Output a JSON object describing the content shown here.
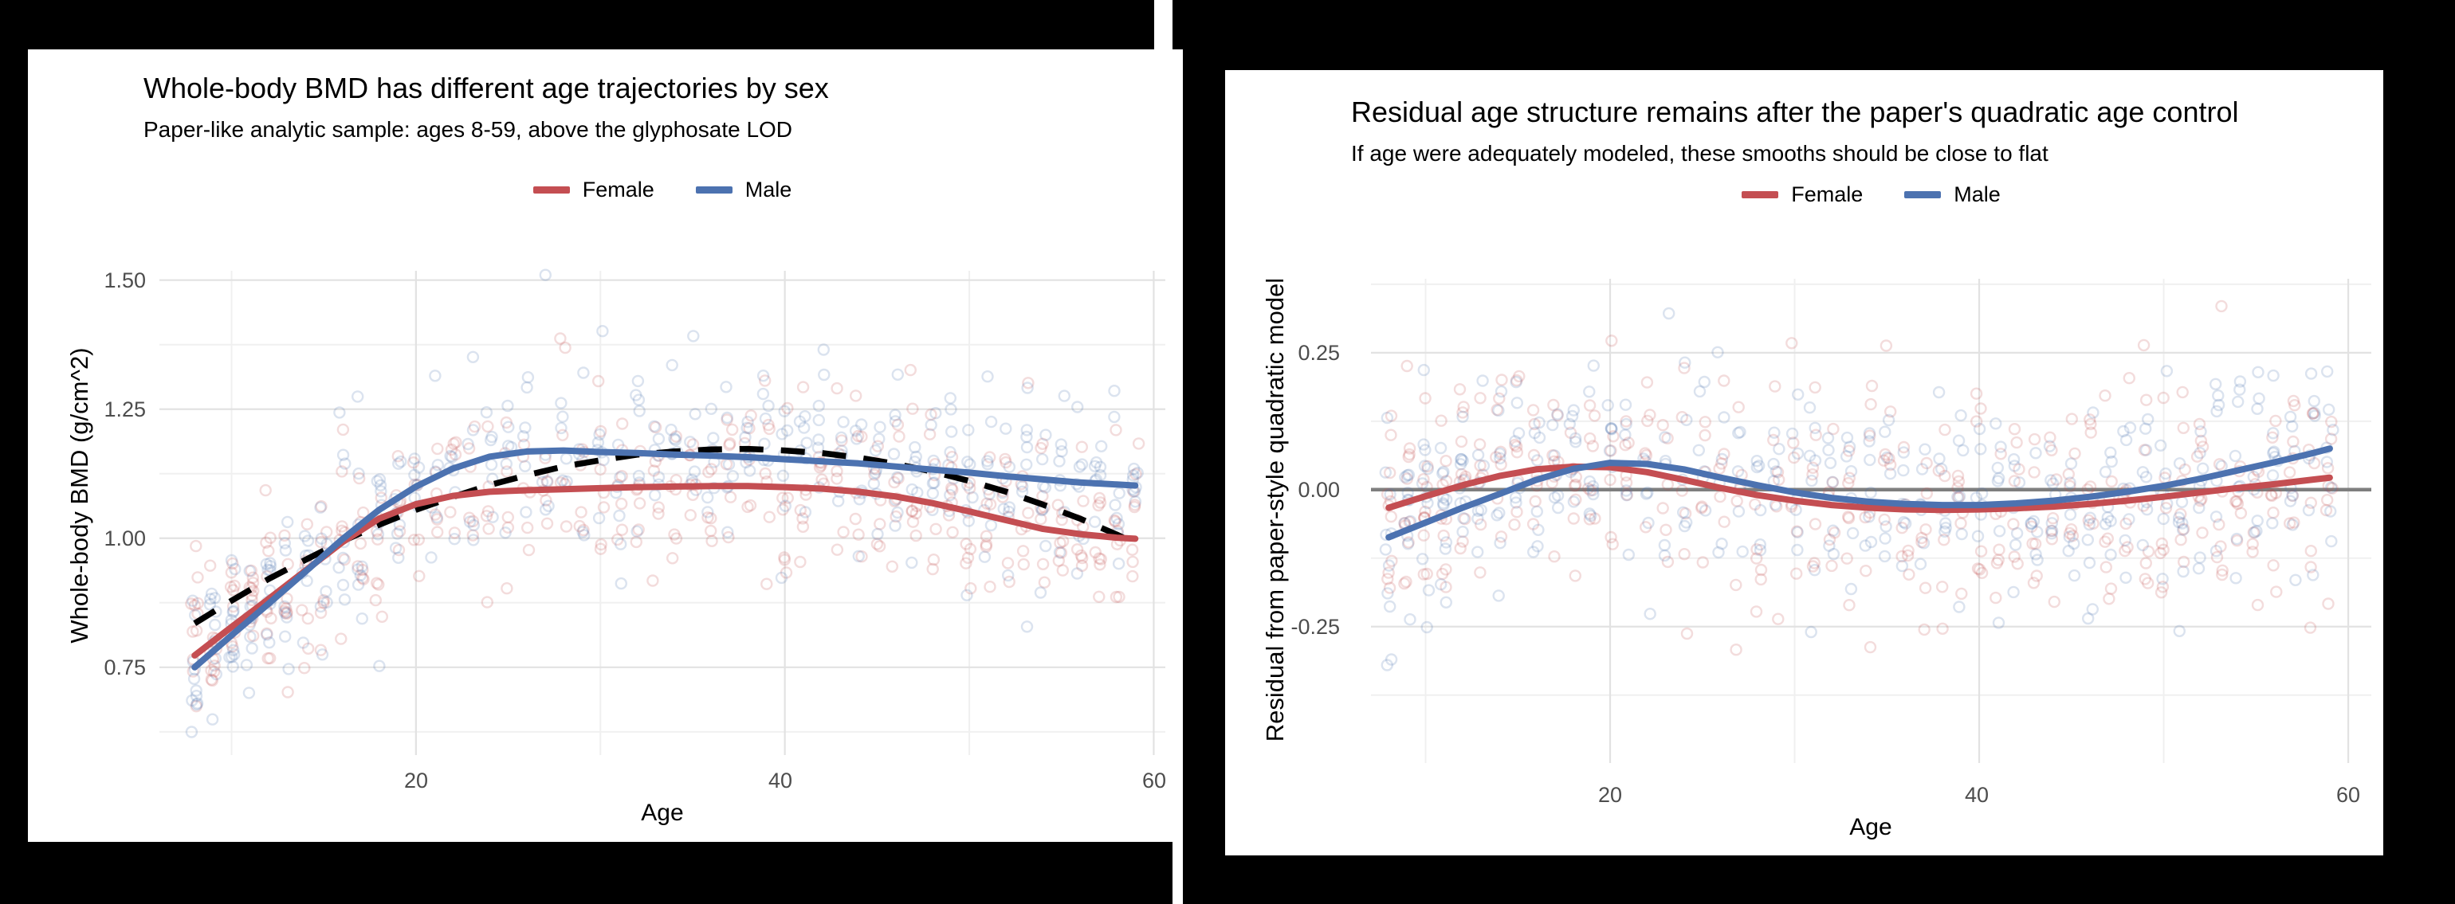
{
  "colors": {
    "female": "#C44E52",
    "male": "#4C72B0",
    "dashed_fit": "#000000",
    "grid_major": "#E2E2E2",
    "grid_minor": "#F0F0F0",
    "zero_line": "#7F7F7F",
    "tick_text": "#4D4D4D",
    "text": "#000000",
    "panel_bg": "#FFFFFF",
    "page_bg": "#000000"
  },
  "panels": {
    "left": {
      "title": "Whole-body BMD has different age trajectories by sex",
      "subtitle": "Paper-like analytic sample: ages 8-59, above the glyphosate LOD",
      "legend": {
        "items": [
          {
            "label": "Female"
          },
          {
            "label": "Male"
          }
        ]
      },
      "x_axis": {
        "title": "Age",
        "tick_labels": [
          "20",
          "40",
          "60"
        ]
      },
      "y_axis": {
        "title": "Whole-body BMD (g/cm^2)",
        "tick_labels": [
          "1.50",
          "1.25",
          "1.00",
          "0.75"
        ]
      }
    },
    "right": {
      "title": "Residual age structure remains after the paper's quadratic age control",
      "subtitle": "If age were adequately modeled, these smooths should be close to flat",
      "legend": {
        "items": [
          {
            "label": "Female"
          },
          {
            "label": "Male"
          }
        ]
      },
      "x_axis": {
        "title": "Age",
        "tick_labels": [
          "20",
          "40",
          "60"
        ]
      },
      "y_axis": {
        "title": "Residual from paper-style quadratic model",
        "tick_labels": [
          "0.25",
          "0.00",
          "-0.25"
        ]
      }
    }
  },
  "chart_data": [
    {
      "id": "bmd-vs-age",
      "type": "scatter",
      "subtype": "jittered scatter with loess smooths and dashed quadratic reference",
      "title": "Whole-body BMD has different age trajectories by sex",
      "subtitle": "Paper-like analytic sample: ages 8-59, above the glyphosate LOD",
      "xlabel": "Age",
      "ylabel": "Whole-body BMD (g/cm^2)",
      "xlim": [
        6.09,
        60.63
      ],
      "ylim": [
        0.58,
        1.518
      ],
      "x_ticks_major": [
        20,
        40,
        60
      ],
      "x_ticks_minor": [
        10,
        30,
        50
      ],
      "y_ticks_major": [
        1.5,
        1.25,
        1.0,
        0.75
      ],
      "y_ticks_minor": [
        1.375,
        1.125,
        0.875,
        0.625
      ],
      "grid": true,
      "legend_position": "top-center",
      "ages": [
        8,
        10,
        12,
        14,
        16,
        18,
        20,
        22,
        24,
        26,
        28,
        30,
        32,
        34,
        36,
        38,
        40,
        42,
        44,
        46,
        48,
        50,
        52,
        54,
        56,
        58,
        59
      ],
      "series": [
        {
          "name": "Female",
          "color_key": "female",
          "values": [
            0.773,
            0.828,
            0.882,
            0.937,
            0.992,
            1.038,
            1.066,
            1.082,
            1.09,
            1.093,
            1.095,
            1.097,
            1.099,
            1.1,
            1.101,
            1.101,
            1.099,
            1.096,
            1.09,
            1.081,
            1.068,
            1.052,
            1.035,
            1.018,
            1.008,
            1.001,
            0.999
          ]
        },
        {
          "name": "Male",
          "color_key": "male",
          "values": [
            0.75,
            0.812,
            0.873,
            0.935,
            0.998,
            1.055,
            1.1,
            1.135,
            1.158,
            1.168,
            1.17,
            1.167,
            1.165,
            1.162,
            1.16,
            1.157,
            1.153,
            1.149,
            1.145,
            1.139,
            1.133,
            1.127,
            1.12,
            1.114,
            1.108,
            1.104,
            1.102
          ]
        }
      ],
      "reference_curve": {
        "name": "paper-style quadratic age fit",
        "style": "dashed-black",
        "values": [
          0.835,
          0.879,
          0.921,
          0.958,
          0.994,
          1.026,
          1.055,
          1.08,
          1.103,
          1.122,
          1.139,
          1.151,
          1.162,
          1.168,
          1.172,
          1.173,
          1.17,
          1.165,
          1.156,
          1.144,
          1.129,
          1.111,
          1.09,
          1.065,
          1.038,
          1.007,
          0.99
        ]
      },
      "scatter_approximation": {
        "note": "hundreds of translucent open circles in integer-age vertical columns around each sex curve; exact points not individually legible",
        "seed": 42,
        "sd_age_le_12": 0.075,
        "sd_other": 0.095,
        "point_value_range": [
          0.585,
          1.51
        ]
      }
    },
    {
      "id": "residual-vs-age",
      "type": "scatter",
      "subtype": "jittered scatter of model residuals with loess smooths and zero line",
      "title": "Residual age structure remains after the paper's quadratic age control",
      "subtitle": "If age were adequately modeled, these smooths should be close to flat",
      "xlabel": "Age",
      "ylabel": "Residual from paper-style quadratic model",
      "xlim": [
        7.04,
        61.25
      ],
      "ylim": [
        -0.499,
        0.385
      ],
      "x_ticks_major": [
        20,
        40,
        60
      ],
      "x_ticks_minor": [
        10,
        30,
        50
      ],
      "y_ticks_major": [
        0.25,
        0.0,
        -0.25
      ],
      "y_ticks_minor": [
        0.375,
        0.125,
        -0.125,
        -0.375
      ],
      "zero_line": 0,
      "grid": true,
      "legend_position": "top-center",
      "ages": [
        8,
        10,
        12,
        14,
        16,
        18,
        20,
        22,
        24,
        26,
        28,
        30,
        32,
        34,
        36,
        38,
        40,
        42,
        44,
        46,
        48,
        50,
        52,
        54,
        56,
        58,
        59
      ],
      "series": [
        {
          "name": "Female",
          "color_key": "female",
          "values": [
            -0.033,
            -0.012,
            0.008,
            0.025,
            0.037,
            0.042,
            0.041,
            0.032,
            0.018,
            0.003,
            -0.01,
            -0.02,
            -0.028,
            -0.033,
            -0.036,
            -0.037,
            -0.036,
            -0.034,
            -0.031,
            -0.026,
            -0.02,
            -0.013,
            -0.005,
            0.003,
            0.01,
            0.018,
            0.022
          ]
        },
        {
          "name": "Male",
          "color_key": "male",
          "values": [
            -0.087,
            -0.06,
            -0.033,
            -0.008,
            0.018,
            0.038,
            0.049,
            0.047,
            0.037,
            0.022,
            0.008,
            -0.005,
            -0.015,
            -0.022,
            -0.026,
            -0.028,
            -0.028,
            -0.025,
            -0.02,
            -0.013,
            -0.004,
            0.007,
            0.02,
            0.035,
            0.05,
            0.066,
            0.075
          ]
        }
      ],
      "scatter_approximation": {
        "note": "same cohort as left panel shown as residuals; translucent open circles in integer-age columns",
        "seed": 1337,
        "sd_age_le_12": 0.105,
        "sd_other": 0.105,
        "point_value_range": [
          -0.42,
          0.335
        ]
      }
    }
  ]
}
